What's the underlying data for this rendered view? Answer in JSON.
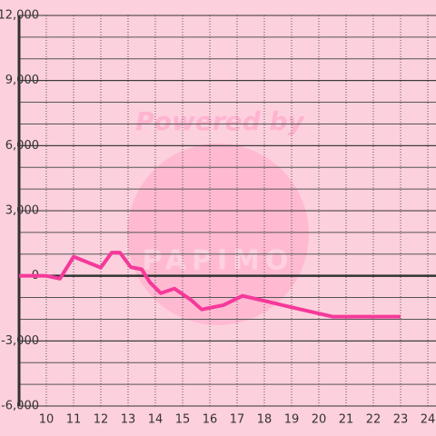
{
  "chart_data": {
    "type": "line",
    "watermark": [
      "Powered by",
      "PAPIMO"
    ],
    "x": [
      9,
      10,
      10.5,
      11,
      12,
      12.4,
      12.7,
      13.1,
      13.5,
      13.8,
      14.2,
      14.7,
      15.3,
      15.7,
      16.5,
      17.2,
      18,
      19,
      20.5,
      23
    ],
    "series": [
      {
        "color": "#f5399a",
        "values": [
          0,
          0,
          -130,
          880,
          380,
          1070,
          1070,
          400,
          300,
          -300,
          -800,
          -590,
          -1100,
          -1550,
          -1350,
          -920,
          -1150,
          -1450,
          -1880,
          -1880
        ]
      }
    ],
    "xlim": [
      9,
      24.3
    ],
    "xticks": [
      10,
      11,
      12,
      13,
      14,
      15,
      16,
      17,
      18,
      19,
      20,
      21,
      22,
      23,
      24
    ],
    "ylim": [
      -6000,
      12000
    ],
    "yticks": [
      {
        "value": -6000,
        "label": "-6,000"
      },
      {
        "value": -3000,
        "label": "-3,000"
      },
      0,
      {
        "value": 3000,
        "label": "3,000"
      },
      {
        "value": 6000,
        "label": "6,000"
      },
      {
        "value": 9000,
        "label": "9,000"
      },
      {
        "value": 12000,
        "label": "12,000"
      }
    ],
    "minor_step": 1000,
    "grid": true
  }
}
